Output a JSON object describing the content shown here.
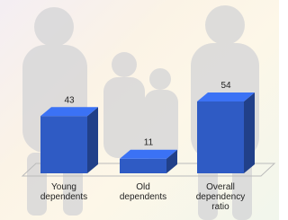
{
  "chart_data": {
    "type": "bar",
    "categories": [
      "Young dependents",
      "Old dependents",
      "Overall dependency ratio"
    ],
    "values": [
      43,
      11,
      54
    ],
    "color": "#2f5bc4"
  }
}
